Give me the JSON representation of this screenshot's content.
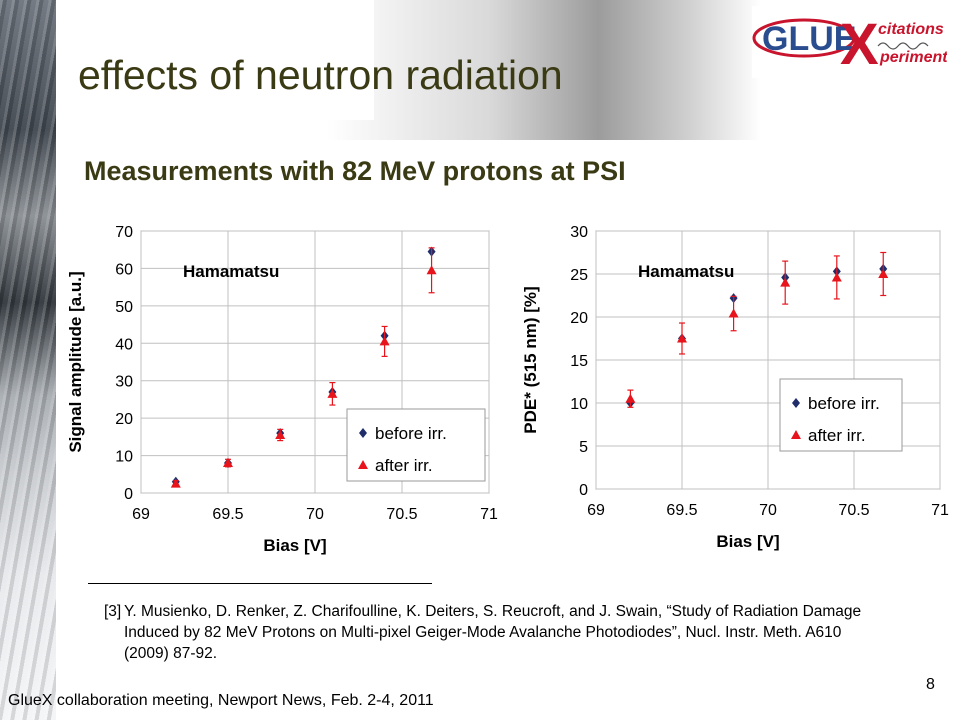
{
  "slide": {
    "title": "effects of neutron radiation",
    "subtitle": "Measurements with 82 MeV protons at PSI",
    "logo_text_main": "GLUE",
    "logo_text_x": "X",
    "logo_text_top": "citations",
    "logo_text_bottom": "periment",
    "reference_number": "[3]",
    "reference_text": "Y. Musienko, D. Renker, Z. Charifoulline, K. Deiters, S. Reucroft, and J. Swain, “Study of Radiation Damage Induced by 82 MeV Protons on Multi-pixel Geiger-Mode Avalanche Photodiodes”, Nucl. Instr. Meth. A610 (2009) 87-92.",
    "footer": "GlueX collaboration meeting, Newport News, Feb. 2-4, 2011",
    "page_number": "8"
  },
  "colors": {
    "title": "#3a3a14",
    "before": "#1f2e6b",
    "after": "#e8141c",
    "grid": "#c0c0c0",
    "logo_red": "#c8142c",
    "logo_blue": "#2a4d8f"
  },
  "chart_data": [
    {
      "type": "scatter",
      "annotation": "Hamamatsu",
      "xlabel": "Bias [V]",
      "ylabel": "Signal amplitude [a.u.]",
      "xlim": [
        69,
        71
      ],
      "ylim": [
        0,
        70
      ],
      "xticks": [
        "69",
        "69.5",
        "70",
        "70.5",
        "71"
      ],
      "yticks": [
        "0",
        "10",
        "20",
        "30",
        "40",
        "50",
        "60",
        "70"
      ],
      "grid": true,
      "legend_position": "bottom-right",
      "series": [
        {
          "name": "before irr.",
          "marker": "diamond",
          "x": [
            69.2,
            69.5,
            69.8,
            70.1,
            70.4,
            70.67
          ],
          "y": [
            3,
            8,
            16,
            27,
            42,
            64.5
          ]
        },
        {
          "name": "after irr.",
          "marker": "triangle",
          "x": [
            69.2,
            69.5,
            69.8,
            70.1,
            70.4,
            70.67
          ],
          "y": [
            2.5,
            8,
            15.5,
            26.5,
            40.5,
            59.5
          ],
          "err": [
            0.8,
            1,
            1.5,
            3,
            4,
            6
          ]
        }
      ]
    },
    {
      "type": "scatter",
      "annotation": "Hamamatsu",
      "xlabel": "Bias [V]",
      "ylabel": "PDE* (515 nm) [%]",
      "xlim": [
        69,
        71
      ],
      "ylim": [
        0,
        30
      ],
      "xticks": [
        "69",
        "69.5",
        "70",
        "70.5",
        "71"
      ],
      "yticks": [
        "0",
        "5",
        "10",
        "15",
        "20",
        "25",
        "30"
      ],
      "grid": true,
      "legend_position": "bottom-right",
      "series": [
        {
          "name": "before irr.",
          "marker": "diamond",
          "x": [
            69.2,
            69.5,
            69.8,
            70.1,
            70.4,
            70.67
          ],
          "y": [
            10,
            17.5,
            22.2,
            24.6,
            25.3,
            25.6
          ]
        },
        {
          "name": "after irr.",
          "marker": "triangle",
          "x": [
            69.2,
            69.5,
            69.8,
            70.1,
            70.4,
            70.67
          ],
          "y": [
            10.5,
            17.5,
            20.4,
            24,
            24.6,
            25
          ],
          "err": [
            1,
            1.8,
            2,
            2.5,
            2.5,
            2.5
          ]
        }
      ]
    }
  ]
}
